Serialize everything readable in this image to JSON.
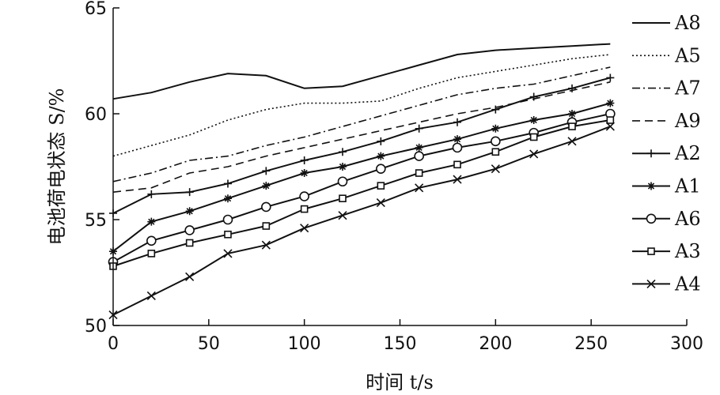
{
  "chart_data": {
    "type": "line",
    "xlabel": "时间 t/s",
    "ylabel": "电池荷电状态 S/%",
    "xlim": [
      0,
      300
    ],
    "ylim": [
      50,
      65
    ],
    "xticks": [
      "0",
      "50",
      "100",
      "150",
      "200",
      "250",
      "300"
    ],
    "yticks": [
      "50",
      "55",
      "60",
      "65"
    ],
    "grid": false,
    "legend_position": "right",
    "series": [
      {
        "name": "A8",
        "style": "solid",
        "marker": "none",
        "x": [
          0,
          20,
          40,
          60,
          80,
          100,
          120,
          140,
          160,
          180,
          200,
          220,
          240,
          260
        ],
        "values": [
          60.7,
          61.0,
          61.5,
          61.9,
          61.8,
          61.2,
          61.3,
          61.8,
          62.3,
          62.8,
          63.0,
          63.1,
          63.2,
          63.3
        ]
      },
      {
        "name": "A5",
        "style": "dotted",
        "marker": "none",
        "x": [
          0,
          20,
          40,
          60,
          80,
          100,
          120,
          140,
          160,
          180,
          200,
          220,
          240,
          260
        ],
        "values": [
          58.0,
          58.5,
          59.0,
          59.7,
          60.2,
          60.5,
          60.5,
          60.6,
          61.2,
          61.7,
          62.0,
          62.3,
          62.6,
          62.8
        ]
      },
      {
        "name": "A7",
        "style": "dashdot",
        "marker": "none",
        "x": [
          0,
          20,
          40,
          60,
          80,
          100,
          120,
          140,
          160,
          180,
          200,
          220,
          240,
          260
        ],
        "values": [
          56.8,
          57.2,
          57.8,
          58.0,
          58.5,
          58.9,
          59.4,
          59.9,
          60.4,
          60.9,
          61.2,
          61.4,
          61.8,
          62.2
        ]
      },
      {
        "name": "A9",
        "style": "dashed",
        "marker": "none",
        "x": [
          0,
          20,
          40,
          60,
          80,
          100,
          120,
          140,
          160,
          180,
          200,
          220,
          240,
          260
        ],
        "values": [
          56.3,
          56.5,
          57.2,
          57.5,
          58.0,
          58.4,
          58.8,
          59.2,
          59.6,
          60.0,
          60.3,
          60.7,
          61.1,
          61.5
        ]
      },
      {
        "name": "A2",
        "style": "solid",
        "marker": "plus",
        "x": [
          0,
          20,
          40,
          60,
          80,
          100,
          120,
          140,
          160,
          180,
          200,
          220,
          240,
          260
        ],
        "values": [
          55.3,
          56.2,
          56.3,
          56.7,
          57.3,
          57.8,
          58.2,
          58.7,
          59.3,
          59.6,
          60.2,
          60.8,
          61.2,
          61.7
        ]
      },
      {
        "name": "A1",
        "style": "solid",
        "marker": "asterisk",
        "x": [
          0,
          20,
          40,
          60,
          80,
          100,
          120,
          140,
          160,
          180,
          200,
          220,
          240,
          260
        ],
        "values": [
          53.5,
          54.9,
          55.4,
          56.0,
          56.6,
          57.2,
          57.5,
          58.0,
          58.4,
          58.8,
          59.3,
          59.7,
          60.0,
          60.5
        ]
      },
      {
        "name": "A6",
        "style": "solid",
        "marker": "circle",
        "x": [
          0,
          20,
          40,
          60,
          80,
          100,
          120,
          140,
          160,
          180,
          200,
          220,
          240,
          260
        ],
        "values": [
          53.0,
          54.0,
          54.5,
          55.0,
          55.6,
          56.1,
          56.8,
          57.4,
          58.0,
          58.4,
          58.7,
          59.1,
          59.6,
          60.0
        ]
      },
      {
        "name": "A3",
        "style": "solid",
        "marker": "square",
        "x": [
          0,
          20,
          40,
          60,
          80,
          100,
          120,
          140,
          160,
          180,
          200,
          220,
          240,
          260
        ],
        "values": [
          52.8,
          53.4,
          53.9,
          54.3,
          54.7,
          55.5,
          56.0,
          56.6,
          57.2,
          57.6,
          58.2,
          58.9,
          59.4,
          59.7
        ]
      },
      {
        "name": "A4",
        "style": "solid",
        "marker": "x",
        "x": [
          0,
          20,
          40,
          60,
          80,
          100,
          120,
          140,
          160,
          180,
          200,
          220,
          240,
          260
        ],
        "values": [
          50.5,
          51.4,
          52.3,
          53.4,
          53.8,
          54.6,
          55.2,
          55.8,
          56.5,
          56.9,
          57.4,
          58.1,
          58.7,
          59.4
        ]
      }
    ]
  }
}
